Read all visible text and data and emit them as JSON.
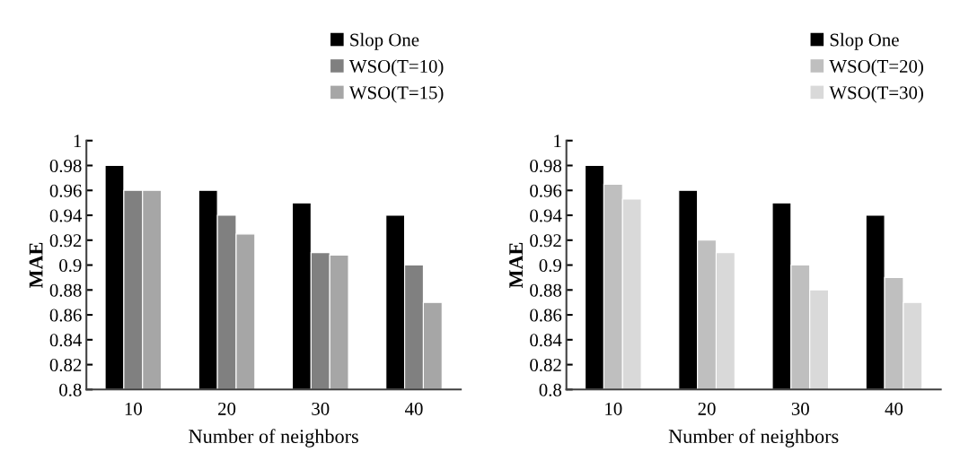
{
  "chart_data": [
    {
      "type": "bar",
      "xlabel": "Number of neighbors",
      "ylabel": "MAE",
      "categories": [
        "10",
        "20",
        "30",
        "40"
      ],
      "ylim": [
        0.8,
        1
      ],
      "yticks": [
        {
          "value": 0.8,
          "label": "0.8"
        },
        0.82,
        0.84,
        0.86,
        0.88,
        {
          "value": 0.9,
          "label": "0.9"
        },
        0.92,
        0.94,
        0.96,
        0.98,
        {
          "value": 1,
          "label": "1"
        }
      ],
      "grid": false,
      "legend": "top right",
      "series": [
        {
          "name": "Slop One",
          "color": "#000000",
          "values": [
            0.98,
            0.96,
            0.95,
            0.94
          ]
        },
        {
          "name": "WSO(T=10)",
          "color": "#808080",
          "values": [
            0.96,
            0.94,
            0.91,
            0.9
          ]
        },
        {
          "name": "WSO(T=15)",
          "color": "#a6a6a6",
          "values": [
            0.96,
            0.925,
            0.908,
            0.87
          ]
        }
      ]
    },
    {
      "type": "bar",
      "xlabel": "Number of neighbors",
      "ylabel": "MAE",
      "categories": [
        "10",
        "20",
        "30",
        "40"
      ],
      "ylim": [
        0.8,
        1
      ],
      "yticks": [
        {
          "value": 0.8,
          "label": "0.8"
        },
        0.82,
        0.84,
        0.86,
        0.88,
        {
          "value": 0.9,
          "label": "0.9"
        },
        0.92,
        0.94,
        0.96,
        0.98,
        {
          "value": 1,
          "label": "1"
        }
      ],
      "grid": false,
      "legend": "top right",
      "series": [
        {
          "name": "Slop One",
          "color": "#000000",
          "values": [
            0.98,
            0.96,
            0.95,
            0.94
          ]
        },
        {
          "name": "WSO(T=20)",
          "color": "#bfbfbf",
          "values": [
            0.965,
            0.92,
            0.9,
            0.89
          ]
        },
        {
          "name": "WSO(T=30)",
          "color": "#d9d9d9",
          "values": [
            0.953,
            0.91,
            0.88,
            0.87
          ]
        }
      ]
    }
  ]
}
